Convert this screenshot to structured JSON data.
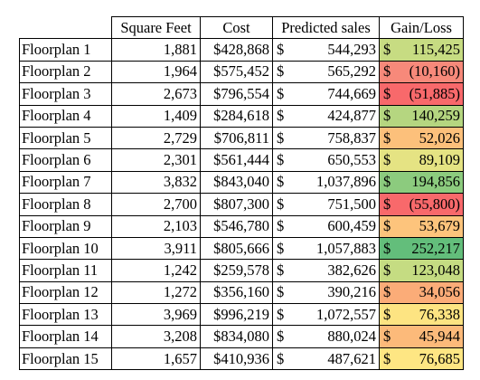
{
  "headers": {
    "square_feet": "Square Feet",
    "cost": "Cost",
    "predicted_sales": "Predicted sales",
    "gain_loss": "Gain/Loss"
  },
  "currency_symbol": "$",
  "rows": [
    {
      "name": "Floorplan 1",
      "sqft": "1,881",
      "cost": "$428,868",
      "predicted": "544,293",
      "gain": "115,425",
      "gain_color": "#c7dc82"
    },
    {
      "name": "Floorplan 2",
      "sqft": "1,964",
      "cost": "$575,452",
      "predicted": "565,292",
      "gain": "(10,160)",
      "gain_color": "#f7897a"
    },
    {
      "name": "Floorplan 3",
      "sqft": "2,673",
      "cost": "$796,554",
      "predicted": "744,669",
      "gain": "(51,885)",
      "gain_color": "#f8696b"
    },
    {
      "name": "Floorplan 4",
      "sqft": "1,409",
      "cost": "$284,618",
      "predicted": "424,877",
      "gain": "140,259",
      "gain_color": "#b5d680"
    },
    {
      "name": "Floorplan 5",
      "sqft": "2,729",
      "cost": "$706,811",
      "predicted": "758,837",
      "gain": "52,026",
      "gain_color": "#fcc07b"
    },
    {
      "name": "Floorplan 6",
      "sqft": "2,301",
      "cost": "$561,444",
      "predicted": "650,553",
      "gain": "89,109",
      "gain_color": "#e5e383"
    },
    {
      "name": "Floorplan 7",
      "sqft": "3,832",
      "cost": "$843,040",
      "predicted": "1,037,896",
      "gain": "194,856",
      "gain_color": "#8ccb7e"
    },
    {
      "name": "Floorplan 8",
      "sqft": "2,700",
      "cost": "$807,300",
      "predicted": "751,500",
      "gain": "(55,800)",
      "gain_color": "#f8696b"
    },
    {
      "name": "Floorplan 9",
      "sqft": "2,103",
      "cost": "$546,780",
      "predicted": "600,459",
      "gain": "53,679",
      "gain_color": "#fdc47c"
    },
    {
      "name": "Floorplan 10",
      "sqft": "3,911",
      "cost": "$805,666",
      "predicted": "1,057,883",
      "gain": "252,217",
      "gain_color": "#63be7b"
    },
    {
      "name": "Floorplan 11",
      "sqft": "1,242",
      "cost": "$259,578",
      "predicted": "382,626",
      "gain": "123,048",
      "gain_color": "#c5dc82"
    },
    {
      "name": "Floorplan 12",
      "sqft": "1,272",
      "cost": "$356,160",
      "predicted": "390,216",
      "gain": "34,056",
      "gain_color": "#fbac78"
    },
    {
      "name": "Floorplan 13",
      "sqft": "3,969",
      "cost": "$996,219",
      "predicted": "1,072,557",
      "gain": "76,338",
      "gain_color": "#fde482"
    },
    {
      "name": "Floorplan 14",
      "sqft": "3,208",
      "cost": "$834,080",
      "predicted": "880,024",
      "gain": "45,944",
      "gain_color": "#fcba7a"
    },
    {
      "name": "Floorplan 15",
      "sqft": "1,657",
      "cost": "$410,936",
      "predicted": "487,621",
      "gain": "76,685",
      "gain_color": "#fee683"
    }
  ]
}
